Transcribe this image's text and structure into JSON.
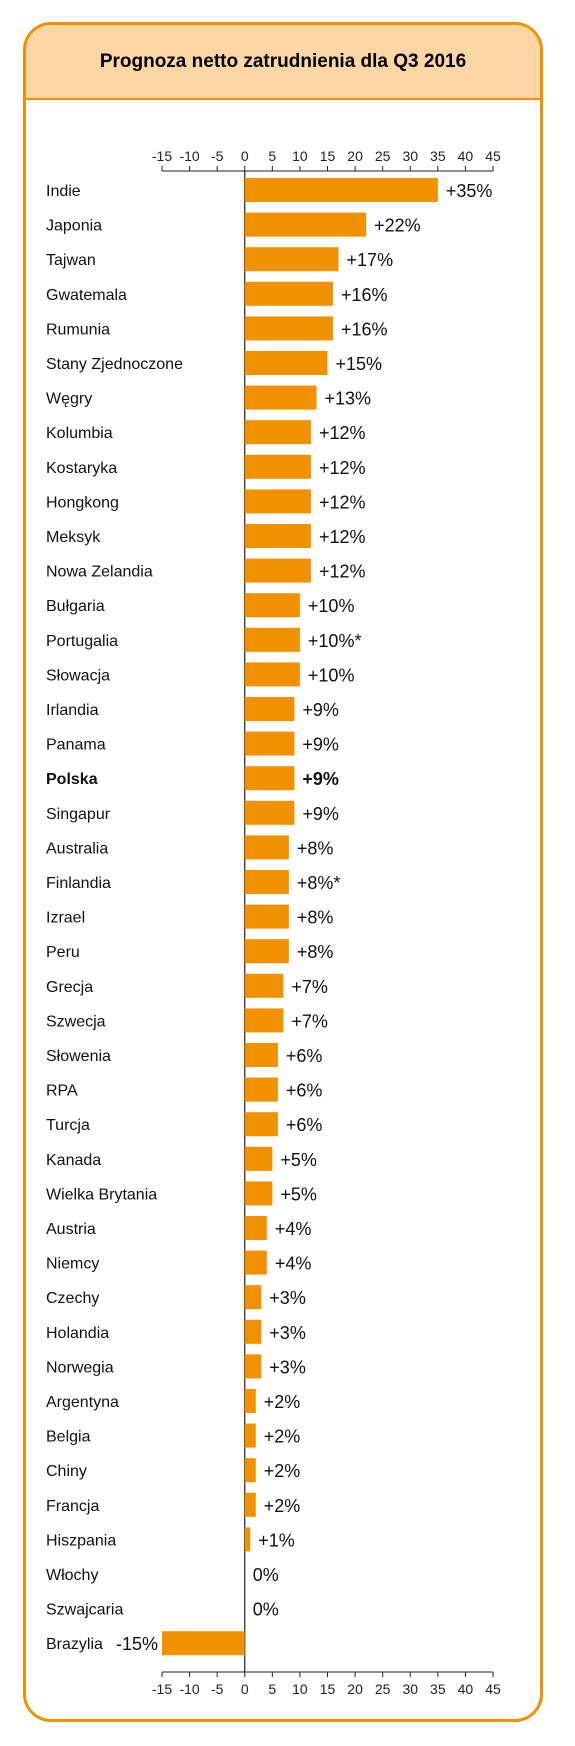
{
  "chart_data": {
    "type": "bar",
    "orientation": "horizontal",
    "title": "Prognoza netto zatrudnienia dla Q3 2016",
    "xlim": [
      -15,
      45
    ],
    "x_ticks": [
      -15,
      -10,
      -5,
      0,
      5,
      10,
      15,
      20,
      25,
      30,
      35,
      40,
      45
    ],
    "axes": [
      "top",
      "bottom"
    ],
    "highlighted_category": "Polska",
    "bar_color": "#f29100",
    "categories": [
      "Indie",
      "Japonia",
      "Tajwan",
      "Gwatemala",
      "Rumunia",
      "Stany Zjednoczone",
      "Węgry",
      "Kolumbia",
      "Kostaryka",
      "Hongkong",
      "Meksyk",
      "Nowa Zelandia",
      "Bułgaria",
      "Portugalia",
      "Słowacja",
      "Irlandia",
      "Panama",
      "Polska",
      "Singapur",
      "Australia",
      "Finlandia",
      "Izrael",
      "Peru",
      "Grecja",
      "Szwecja",
      "Słowenia",
      "RPA",
      "Turcja",
      "Kanada",
      "Wielka Brytania",
      "Austria",
      "Niemcy",
      "Czechy",
      "Holandia",
      "Norwegia",
      "Argentyna",
      "Belgia",
      "Chiny",
      "Francja",
      "Hiszpania",
      "Włochy",
      "Szwajcaria",
      "Brazylia"
    ],
    "values": [
      35,
      22,
      17,
      16,
      16,
      15,
      13,
      12,
      12,
      12,
      12,
      12,
      10,
      10,
      10,
      9,
      9,
      9,
      9,
      8,
      8,
      8,
      8,
      7,
      7,
      6,
      6,
      6,
      5,
      5,
      4,
      4,
      3,
      3,
      3,
      2,
      2,
      2,
      2,
      1,
      0,
      0,
      -15
    ],
    "value_labels": [
      "+35%",
      "+22%",
      "+17%",
      "+16%",
      "+16%",
      "+15%",
      "+13%",
      "+12%",
      "+12%",
      "+12%",
      "+12%",
      "+12%",
      "+10%",
      "+10%*",
      "+10%",
      "+9%",
      "+9%",
      "+9%",
      "+9%",
      "+8%",
      "+8%*",
      "+8%",
      "+8%",
      "+7%",
      "+7%",
      "+6%",
      "+6%",
      "+6%",
      "+5%",
      "+5%",
      "+4%",
      "+4%",
      "+3%",
      "+3%",
      "+3%",
      "+2%",
      "+2%",
      "+2%",
      "+2%",
      "+1%",
      "0%",
      "0%",
      "-15%"
    ]
  }
}
